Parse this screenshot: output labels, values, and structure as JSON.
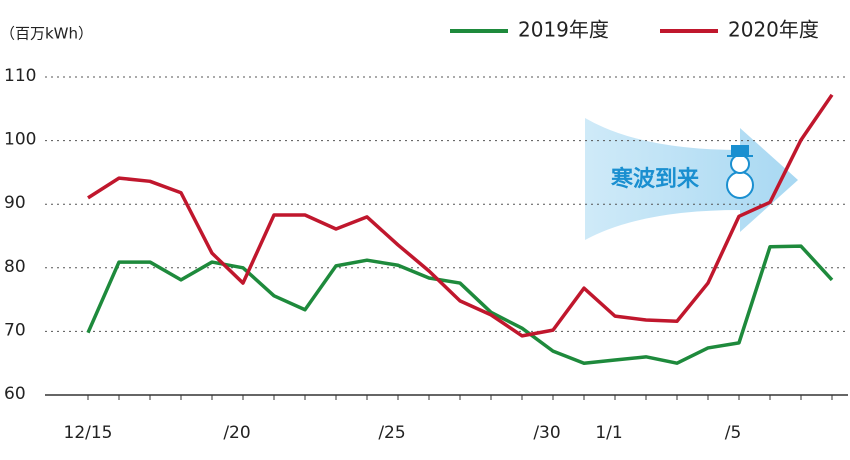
{
  "chart_data": {
    "type": "line",
    "y_label": "（百万kWh）",
    "annotation": "寒波到来",
    "categories": [
      "12/15",
      null,
      null,
      null,
      null,
      "/20",
      null,
      null,
      null,
      null,
      "/25",
      null,
      null,
      null,
      null,
      "/30",
      null,
      "1/1",
      null,
      null,
      null,
      "/5",
      null,
      null,
      null
    ],
    "series": [
      {
        "name": "2019年度",
        "color": "#1e8a3c",
        "values": [
          69.8,
          80.9,
          80.9,
          78.1,
          80.9,
          80.0,
          75.6,
          73.4,
          80.3,
          81.2,
          80.4,
          78.4,
          77.6,
          73.0,
          70.5,
          66.9,
          65.0,
          65.5,
          66.0,
          65.0,
          67.4,
          68.2,
          83.3,
          83.4,
          78.1
        ]
      },
      {
        "name": "2020年度",
        "color": "#c0172d",
        "values": [
          91.0,
          94.1,
          93.6,
          91.8,
          82.3,
          77.6,
          88.3,
          88.3,
          86.1,
          88.0,
          83.6,
          79.5,
          74.8,
          72.6,
          69.3,
          70.2,
          76.8,
          72.4,
          71.8,
          71.6,
          77.6,
          88.1,
          90.3,
          100.1,
          107.2
        ]
      }
    ],
    "ylim": [
      60,
      110
    ],
    "yticks": [
      60,
      70,
      80,
      90,
      100,
      110
    ],
    "grid": true
  }
}
